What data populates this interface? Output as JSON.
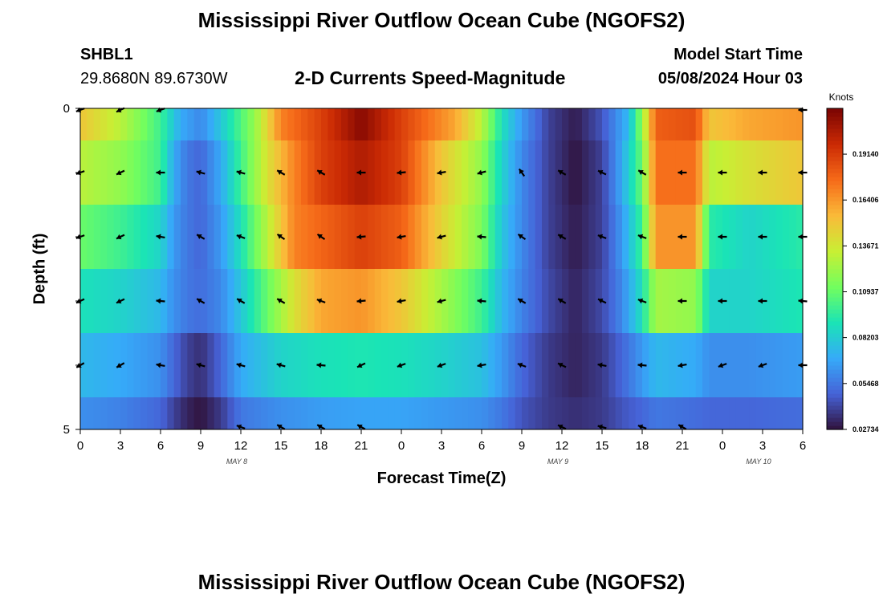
{
  "header": {
    "title": "Mississippi River Outflow Ocean Cube (NGOFS2)",
    "station_id": "SHBL1",
    "station_coords": "29.8680N  89.6730W",
    "subtitle": "2-D Currents Speed-Magnitude",
    "model_label": "Model Start Time",
    "model_time": "05/08/2024 Hour 03"
  },
  "footer": {
    "title": "Mississippi River Outflow Ocean Cube (NGOFS2)"
  },
  "colors": {
    "colormap": [
      "#30123b",
      "#4662d7",
      "#36aaf9",
      "#1ae4b6",
      "#72fe5e",
      "#c8ef34",
      "#faba39",
      "#f66b19",
      "#cb2a04",
      "#7a0403"
    ]
  },
  "chart_data": {
    "type": "heatmap",
    "xlabel": "Forecast Time(Z)",
    "ylabel": "Depth (ft)",
    "x_tick_labels": [
      "0",
      "3",
      "6",
      "9",
      "12",
      "15",
      "18",
      "21",
      "0",
      "3",
      "6",
      "9",
      "12",
      "15",
      "18",
      "21",
      "0",
      "3",
      "6"
    ],
    "x_hours": [
      0,
      3,
      6,
      9,
      12,
      15,
      18,
      21,
      24,
      27,
      30,
      33,
      36,
      39,
      42,
      45,
      48,
      51,
      54
    ],
    "date_labels": [
      {
        "text": "MAY 8",
        "hour": 12
      },
      {
        "text": "MAY 9",
        "hour": 36
      },
      {
        "text": "MAY 10",
        "hour": 51
      }
    ],
    "y_range": [
      0,
      5
    ],
    "y_tick_labels": [
      "0",
      "",
      "",
      "",
      "",
      "5"
    ],
    "y_ticks": [
      0,
      1,
      2,
      3,
      4,
      5
    ],
    "colorbar": {
      "title": "Knots",
      "range": [
        0.0273,
        0.2187
      ],
      "ticks": [
        0.1914,
        0.16406,
        0.13671,
        0.10937,
        0.08203,
        0.05468,
        0.02734
      ],
      "tick_labels": [
        "0.19140",
        "0.16406",
        "0.13671",
        "0.10937",
        "0.08203",
        "0.05468",
        "0.02734"
      ]
    },
    "layers": [
      {
        "depth_range": [
          0.0,
          0.5
        ],
        "keys": [
          [
            0,
            0.15
          ],
          [
            3,
            0.13
          ],
          [
            6,
            0.1
          ],
          [
            7.5,
            0.07
          ],
          [
            9,
            0.06
          ],
          [
            10.5,
            0.08
          ],
          [
            13,
            0.12
          ],
          [
            15,
            0.17
          ],
          [
            18,
            0.19
          ],
          [
            21,
            0.215
          ],
          [
            24,
            0.19
          ],
          [
            28,
            0.16
          ],
          [
            30,
            0.13
          ],
          [
            31.5,
            0.09
          ],
          [
            33,
            0.065
          ],
          [
            35,
            0.04
          ],
          [
            37,
            0.03
          ],
          [
            39,
            0.045
          ],
          [
            41,
            0.075
          ],
          [
            42,
            0.12
          ],
          [
            43,
            0.18
          ],
          [
            46,
            0.185
          ],
          [
            47,
            0.15
          ],
          [
            50,
            0.16
          ],
          [
            54,
            0.165
          ]
        ]
      },
      {
        "depth_range": [
          0.5,
          1.5
        ],
        "keys": [
          [
            0,
            0.13
          ],
          [
            3,
            0.12
          ],
          [
            6,
            0.1
          ],
          [
            7,
            0.07
          ],
          [
            8,
            0.055
          ],
          [
            9,
            0.05
          ],
          [
            10.5,
            0.07
          ],
          [
            12,
            0.1
          ],
          [
            14,
            0.14
          ],
          [
            16,
            0.17
          ],
          [
            18,
            0.19
          ],
          [
            21,
            0.205
          ],
          [
            24,
            0.19
          ],
          [
            27,
            0.15
          ],
          [
            30,
            0.12
          ],
          [
            31.5,
            0.085
          ],
          [
            33,
            0.06
          ],
          [
            35,
            0.04
          ],
          [
            37,
            0.028
          ],
          [
            39,
            0.04
          ],
          [
            40.5,
            0.07
          ],
          [
            42,
            0.11
          ],
          [
            43,
            0.175
          ],
          [
            46,
            0.175
          ],
          [
            47,
            0.13
          ],
          [
            50,
            0.14
          ],
          [
            54,
            0.15
          ]
        ]
      },
      {
        "depth_range": [
          1.5,
          2.5
        ],
        "keys": [
          [
            0,
            0.11
          ],
          [
            3,
            0.1
          ],
          [
            6,
            0.085
          ],
          [
            7,
            0.065
          ],
          [
            8,
            0.055
          ],
          [
            9,
            0.05
          ],
          [
            10.5,
            0.065
          ],
          [
            12,
            0.09
          ],
          [
            14,
            0.13
          ],
          [
            16,
            0.17
          ],
          [
            21,
            0.19
          ],
          [
            24,
            0.18
          ],
          [
            27,
            0.145
          ],
          [
            30,
            0.115
          ],
          [
            31.5,
            0.08
          ],
          [
            33,
            0.06
          ],
          [
            35,
            0.04
          ],
          [
            37,
            0.03
          ],
          [
            39,
            0.04
          ],
          [
            40.5,
            0.065
          ],
          [
            42,
            0.1
          ],
          [
            43,
            0.165
          ],
          [
            46,
            0.165
          ],
          [
            47,
            0.095
          ],
          [
            50,
            0.085
          ],
          [
            54,
            0.095
          ]
        ]
      },
      {
        "depth_range": [
          2.5,
          3.5
        ],
        "keys": [
          [
            0,
            0.09
          ],
          [
            3,
            0.085
          ],
          [
            6,
            0.075
          ],
          [
            7,
            0.062
          ],
          [
            8,
            0.055
          ],
          [
            9,
            0.052
          ],
          [
            10.5,
            0.06
          ],
          [
            12,
            0.08
          ],
          [
            14,
            0.11
          ],
          [
            16,
            0.14
          ],
          [
            18,
            0.16
          ],
          [
            21,
            0.165
          ],
          [
            24,
            0.15
          ],
          [
            27,
            0.125
          ],
          [
            30,
            0.1
          ],
          [
            31.5,
            0.075
          ],
          [
            33,
            0.058
          ],
          [
            35,
            0.042
          ],
          [
            37,
            0.032
          ],
          [
            39,
            0.042
          ],
          [
            40.5,
            0.06
          ],
          [
            42,
            0.09
          ],
          [
            43,
            0.125
          ],
          [
            46,
            0.12
          ],
          [
            47,
            0.085
          ],
          [
            50,
            0.085
          ],
          [
            54,
            0.092
          ]
        ]
      },
      {
        "depth_range": [
          3.5,
          4.5
        ],
        "keys": [
          [
            0,
            0.075
          ],
          [
            3,
            0.07
          ],
          [
            6,
            0.062
          ],
          [
            7,
            0.05
          ],
          [
            8,
            0.04
          ],
          [
            9,
            0.035
          ],
          [
            10.5,
            0.05
          ],
          [
            12,
            0.07
          ],
          [
            15,
            0.085
          ],
          [
            18,
            0.09
          ],
          [
            21,
            0.092
          ],
          [
            24,
            0.09
          ],
          [
            27,
            0.085
          ],
          [
            30,
            0.078
          ],
          [
            31.5,
            0.065
          ],
          [
            33,
            0.05
          ],
          [
            35,
            0.038
          ],
          [
            37,
            0.032
          ],
          [
            39,
            0.038
          ],
          [
            40.5,
            0.05
          ],
          [
            42,
            0.065
          ],
          [
            43,
            0.075
          ],
          [
            46,
            0.07
          ],
          [
            47,
            0.062
          ],
          [
            50,
            0.062
          ],
          [
            54,
            0.066
          ]
        ]
      },
      {
        "depth_range": [
          4.5,
          5.0
        ],
        "keys": [
          [
            0,
            0.062
          ],
          [
            3,
            0.058
          ],
          [
            6,
            0.05
          ],
          [
            7,
            0.04
          ],
          [
            8,
            0.032
          ],
          [
            9,
            0.028
          ],
          [
            10.5,
            0.038
          ],
          [
            12,
            0.055
          ],
          [
            15,
            0.062
          ],
          [
            18,
            0.066
          ],
          [
            21,
            0.068
          ],
          [
            24,
            0.068
          ],
          [
            27,
            0.065
          ],
          [
            30,
            0.062
          ],
          [
            31.5,
            0.055
          ],
          [
            33,
            0.045
          ],
          [
            35,
            0.038
          ],
          [
            37,
            0.035
          ],
          [
            39,
            0.038
          ],
          [
            40.5,
            0.045
          ],
          [
            42,
            0.05
          ],
          [
            43,
            0.055
          ],
          [
            46,
            0.052
          ],
          [
            47,
            0.05
          ],
          [
            50,
            0.05
          ],
          [
            54,
            0.052
          ]
        ]
      }
    ],
    "vectors": {
      "hours": [
        0,
        3,
        6,
        9,
        12,
        15,
        18,
        21,
        24,
        27,
        30,
        33,
        36,
        39,
        42,
        45,
        48,
        51,
        54
      ],
      "rows": [
        {
          "depth": 0.0,
          "dirs_deg": [
            200,
            205,
            200,
            null,
            null,
            null,
            null,
            null,
            null,
            null,
            null,
            null,
            null,
            null,
            null,
            null,
            null,
            null,
            180
          ]
        },
        {
          "depth": 1.0,
          "dirs_deg": [
            200,
            205,
            180,
            165,
            165,
            150,
            150,
            180,
            185,
            190,
            195,
            125,
            150,
            155,
            150,
            180,
            180,
            180,
            180
          ]
        },
        {
          "depth": 2.0,
          "dirs_deg": [
            200,
            205,
            170,
            150,
            160,
            145,
            145,
            185,
            190,
            195,
            175,
            145,
            150,
            160,
            160,
            180,
            180,
            180,
            180
          ]
        },
        {
          "depth": 3.0,
          "dirs_deg": [
            205,
            205,
            175,
            150,
            150,
            150,
            160,
            185,
            190,
            195,
            175,
            150,
            150,
            155,
            160,
            180,
            180,
            180,
            175
          ]
        },
        {
          "depth": 4.0,
          "dirs_deg": [
            210,
            210,
            170,
            165,
            165,
            165,
            175,
            205,
            200,
            200,
            190,
            160,
            155,
            170,
            175,
            190,
            200,
            200,
            180
          ]
        },
        {
          "depth": 5.0,
          "dirs_deg": [
            null,
            null,
            null,
            null,
            160,
            150,
            150,
            150,
            null,
            null,
            null,
            null,
            155,
            165,
            160,
            150,
            null,
            null,
            null
          ]
        }
      ]
    }
  }
}
